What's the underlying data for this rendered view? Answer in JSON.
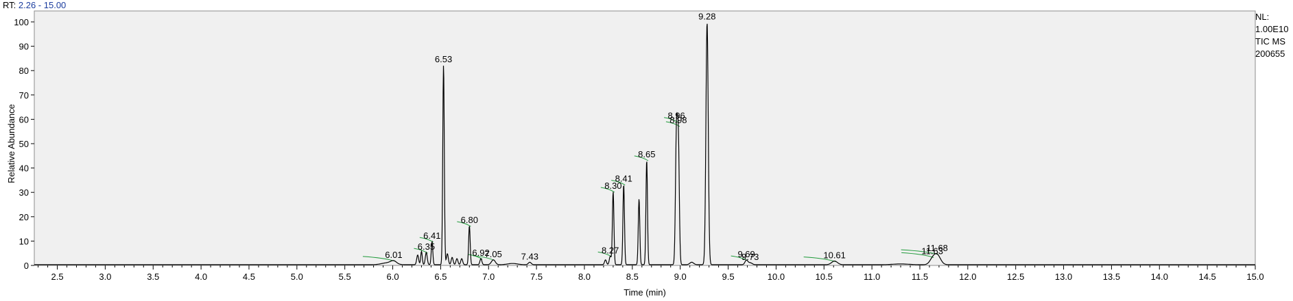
{
  "header": {
    "rt_label": "RT:",
    "rt_range": "2.26 - 15.00"
  },
  "info": {
    "nl_label": "NL:",
    "nl_value": "1.00E10",
    "scan": "TIC  MS",
    "sample": "200655"
  },
  "colors": {
    "trace": "#000000",
    "plot_bg": "#f0f0f0",
    "rt_value": "#1a3c9e",
    "integration": "#1f9a3a"
  },
  "chart_data": {
    "type": "line",
    "xlabel": "Time (min)",
    "ylabel": "Relative Abundance",
    "xlim": [
      2.26,
      15.0
    ],
    "ylim": [
      0,
      100
    ],
    "xticks": [
      2.5,
      3.0,
      3.5,
      4.0,
      4.5,
      5.0,
      5.5,
      6.0,
      6.5,
      7.0,
      7.5,
      8.0,
      8.5,
      9.0,
      9.5,
      10.0,
      10.5,
      11.0,
      11.5,
      12.0,
      12.5,
      13.0,
      13.5,
      14.0,
      14.5,
      15.0
    ],
    "xtick_labels": [
      "2.5",
      "3.0",
      "3.5",
      "4.0",
      "4.5",
      "5.0",
      "5.5",
      "6.0",
      "6.5",
      "7.0",
      "7.5",
      "8.0",
      "8.5",
      "9.0",
      "9.5",
      "10.0",
      "10.5",
      "11.0",
      "11.5",
      "12.0",
      "12.5",
      "13.0",
      "13.5",
      "14.0",
      "14.5",
      "15.0"
    ],
    "yticks": [
      0,
      10,
      20,
      30,
      40,
      50,
      60,
      70,
      80,
      90,
      100
    ],
    "ytick_labels": [
      "0",
      "10",
      "20",
      "30",
      "40",
      "50",
      "60",
      "70",
      "80",
      "90",
      "100"
    ],
    "baseline": 0.3,
    "peaks": [
      {
        "rt": 5.95,
        "height": 0.8,
        "width": 0.06,
        "label": ""
      },
      {
        "rt": 6.01,
        "height": 1.2,
        "width": 0.03,
        "label": "6.01"
      },
      {
        "rt": 6.26,
        "height": 4.0,
        "width": 0.01,
        "label": ""
      },
      {
        "rt": 6.3,
        "height": 5.5,
        "width": 0.008,
        "label": ""
      },
      {
        "rt": 6.35,
        "height": 5.0,
        "width": 0.01,
        "label": "6.35"
      },
      {
        "rt": 6.41,
        "height": 9.5,
        "width": 0.008,
        "label": "6.41"
      },
      {
        "rt": 6.53,
        "height": 82.0,
        "width": 0.008,
        "label": "6.53"
      },
      {
        "rt": 6.57,
        "height": 4.5,
        "width": 0.01,
        "label": ""
      },
      {
        "rt": 6.62,
        "height": 3.0,
        "width": 0.01,
        "label": ""
      },
      {
        "rt": 6.67,
        "height": 2.5,
        "width": 0.01,
        "label": ""
      },
      {
        "rt": 6.72,
        "height": 2.5,
        "width": 0.01,
        "label": ""
      },
      {
        "rt": 6.8,
        "height": 16.0,
        "width": 0.008,
        "label": "6.80"
      },
      {
        "rt": 6.92,
        "height": 2.5,
        "width": 0.01,
        "label": "6.92"
      },
      {
        "rt": 7.05,
        "height": 2.0,
        "width": 0.02,
        "label": "7.05"
      },
      {
        "rt": 7.25,
        "height": 0.5,
        "width": 0.05,
        "label": ""
      },
      {
        "rt": 7.43,
        "height": 1.0,
        "width": 0.015,
        "label": "7.43"
      },
      {
        "rt": 8.22,
        "height": 2.0,
        "width": 0.01,
        "label": ""
      },
      {
        "rt": 8.27,
        "height": 3.5,
        "width": 0.01,
        "label": "8.27"
      },
      {
        "rt": 8.3,
        "height": 30.0,
        "width": 0.008,
        "label": "8.30"
      },
      {
        "rt": 8.41,
        "height": 33.0,
        "width": 0.008,
        "label": "8.41"
      },
      {
        "rt": 8.57,
        "height": 27.0,
        "width": 0.008,
        "label": ""
      },
      {
        "rt": 8.65,
        "height": 43.0,
        "width": 0.008,
        "label": "8.65"
      },
      {
        "rt": 8.96,
        "height": 52.0,
        "width": 0.01,
        "label": "8.96"
      },
      {
        "rt": 8.98,
        "height": 50.0,
        "width": 0.01,
        "label": "8.98"
      },
      {
        "rt": 9.12,
        "height": 1.0,
        "width": 0.02,
        "label": ""
      },
      {
        "rt": 9.28,
        "height": 99.5,
        "width": 0.012,
        "label": "9.28"
      },
      {
        "rt": 9.69,
        "height": 1.8,
        "width": 0.015,
        "label": "9.69"
      },
      {
        "rt": 9.73,
        "height": 0.8,
        "width": 0.02,
        "label": "9.73"
      },
      {
        "rt": 10.61,
        "height": 1.5,
        "width": 0.03,
        "label": "10.61"
      },
      {
        "rt": 11.3,
        "height": 0.3,
        "width": 0.08,
        "label": ""
      },
      {
        "rt": 11.63,
        "height": 1.8,
        "width": 0.03,
        "label": "11.63"
      },
      {
        "rt": 11.68,
        "height": 4.0,
        "width": 0.035,
        "label": "11.68"
      }
    ]
  }
}
